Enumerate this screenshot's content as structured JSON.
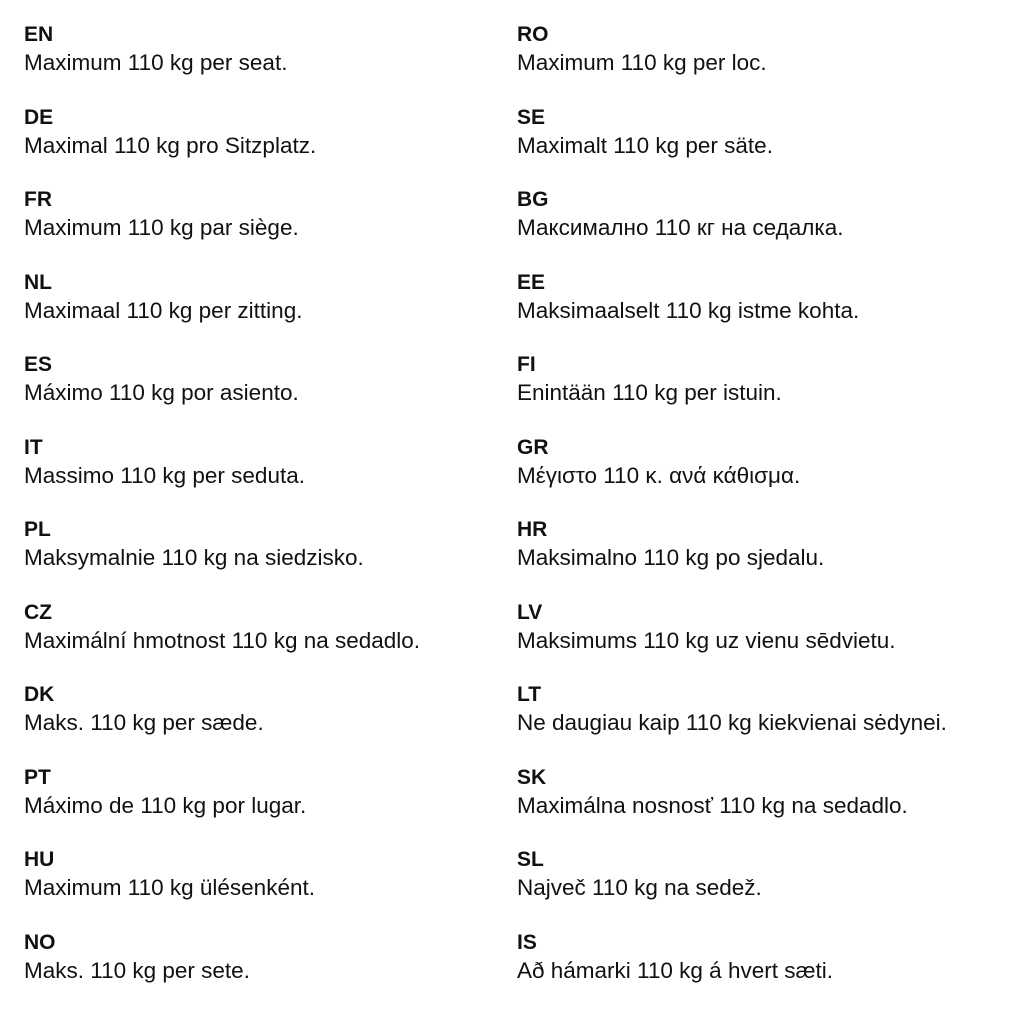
{
  "left": [
    {
      "code": "EN",
      "text": "Maximum 110 kg per seat."
    },
    {
      "code": "DE",
      "text": "Maximal 110 kg pro Sitzplatz."
    },
    {
      "code": "FR",
      "text": "Maximum 110 kg par siège."
    },
    {
      "code": "NL",
      "text": "Maximaal 110 kg per zitting."
    },
    {
      "code": "ES",
      "text": "Máximo 110 kg por asiento."
    },
    {
      "code": "IT",
      "text": "Massimo 110 kg per seduta."
    },
    {
      "code": "PL",
      "text": "Maksymalnie 110 kg na siedzisko."
    },
    {
      "code": "CZ",
      "text": "Maximální hmotnost 110 kg na sedadlo."
    },
    {
      "code": "DK",
      "text": "Maks. 110 kg per sæde."
    },
    {
      "code": "PT",
      "text": "Máximo de 110 kg por lugar."
    },
    {
      "code": "HU",
      "text": "Maximum 110 kg ülésenként."
    },
    {
      "code": "NO",
      "text": "Maks. 110 kg per sete."
    }
  ],
  "right": [
    {
      "code": "RO",
      "text": "Maximum 110 kg per loc."
    },
    {
      "code": "SE",
      "text": "Maximalt 110 kg per säte."
    },
    {
      "code": "BG",
      "text": "Максимално 110 кг на седалка."
    },
    {
      "code": "EE",
      "text": "Maksimaalselt 110 kg istme kohta."
    },
    {
      "code": "FI",
      "text": "Enintään 110 kg per istuin."
    },
    {
      "code": "GR",
      "text": "Μέγιστο 110 κ. ανά κάθισμα."
    },
    {
      "code": "HR",
      "text": "Maksimalno 110 kg po sjedalu."
    },
    {
      "code": "LV",
      "text": "Maksimums 110 kg uz vienu sēdvietu."
    },
    {
      "code": "LT",
      "text": "Ne daugiau kaip 110 kg kiekvienai sėdynei."
    },
    {
      "code": "SK",
      "text": "Maximálna nosnosť 110 kg na sedadlo."
    },
    {
      "code": "SL",
      "text": "Največ 110 kg na sedež."
    },
    {
      "code": "IS",
      "text": "Að hámarki 110 kg á hvert sæti."
    }
  ]
}
